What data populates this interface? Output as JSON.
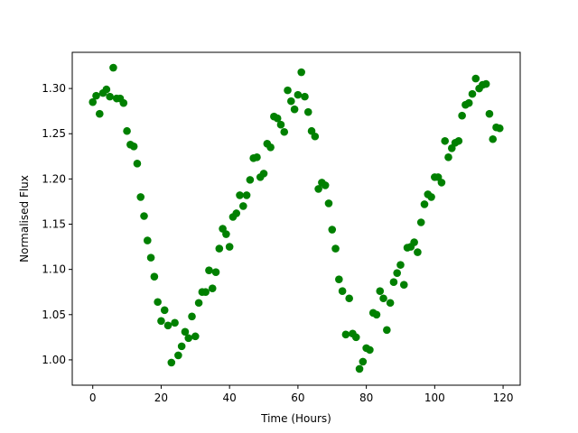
{
  "chart_data": {
    "type": "scatter",
    "title": "",
    "xlabel": "Time (Hours)",
    "ylabel": "Normalised Flux",
    "xlim": [
      -6,
      125
    ],
    "ylim": [
      0.972,
      1.34
    ],
    "xticks": [
      0,
      20,
      40,
      60,
      80,
      100,
      120
    ],
    "xtick_labels": [
      "0",
      "20",
      "40",
      "60",
      "80",
      "100",
      "120"
    ],
    "yticks": [
      1.0,
      1.05,
      1.1,
      1.15,
      1.2,
      1.25,
      1.3
    ],
    "ytick_labels": [
      "1.00",
      "1.05",
      "1.10",
      "1.15",
      "1.20",
      "1.25",
      "1.30"
    ],
    "grid": false,
    "legend": "none",
    "marker_color": "#008000",
    "series": [
      {
        "x": [
          0,
          1,
          2,
          3,
          4,
          5,
          6,
          7,
          8,
          9,
          10,
          11,
          12,
          13,
          14,
          15,
          16,
          17,
          18,
          19,
          20,
          21,
          22,
          23,
          24,
          25,
          26,
          27,
          28,
          29,
          30,
          31,
          32,
          33,
          34,
          35,
          36,
          37,
          38,
          39,
          40,
          41,
          42,
          43,
          44,
          45,
          46,
          47,
          48,
          49,
          50,
          51,
          52,
          53,
          54,
          55,
          56,
          57,
          58,
          59,
          60,
          61,
          62,
          63,
          64,
          65,
          66,
          67,
          68,
          69,
          70,
          71,
          72,
          73,
          74,
          75,
          76,
          77,
          78,
          79,
          80,
          81,
          82,
          83,
          84,
          85,
          86,
          87,
          88,
          89,
          90,
          91,
          92,
          93,
          94,
          95,
          96,
          97,
          98,
          99,
          100,
          101,
          102,
          103,
          104,
          105,
          106,
          107,
          108,
          109,
          110,
          111,
          112,
          113,
          114,
          115,
          116,
          117,
          118,
          119
        ],
        "y": [
          1.285,
          1.292,
          1.272,
          1.295,
          1.299,
          1.291,
          1.323,
          1.289,
          1.289,
          1.284,
          1.253,
          1.238,
          1.236,
          1.217,
          1.18,
          1.159,
          1.132,
          1.113,
          1.092,
          1.064,
          1.043,
          1.055,
          1.038,
          0.997,
          1.041,
          1.005,
          1.015,
          1.031,
          1.024,
          1.048,
          1.026,
          1.063,
          1.075,
          1.075,
          1.099,
          1.079,
          1.097,
          1.123,
          1.145,
          1.139,
          1.125,
          1.158,
          1.162,
          1.182,
          1.17,
          1.182,
          1.199,
          1.223,
          1.224,
          1.202,
          1.206,
          1.239,
          1.235,
          1.269,
          1.267,
          1.26,
          1.252,
          1.298,
          1.286,
          1.277,
          1.293,
          1.318,
          1.291,
          1.274,
          1.253,
          1.247,
          1.189,
          1.196,
          1.193,
          1.173,
          1.144,
          1.123,
          1.089,
          1.076,
          1.028,
          1.068,
          1.029,
          1.025,
          0.99,
          0.998,
          1.013,
          1.011,
          1.052,
          1.05,
          1.076,
          1.068,
          1.033,
          1.063,
          1.086,
          1.096,
          1.105,
          1.083,
          1.124,
          1.125,
          1.13,
          1.119,
          1.152,
          1.172,
          1.183,
          1.18,
          1.202,
          1.202,
          1.196,
          1.242,
          1.224,
          1.234,
          1.24,
          1.242,
          1.27,
          1.282,
          1.284,
          1.294,
          1.311,
          1.3,
          1.304,
          1.305,
          1.272,
          1.244,
          1.257,
          1.256
        ]
      }
    ]
  }
}
